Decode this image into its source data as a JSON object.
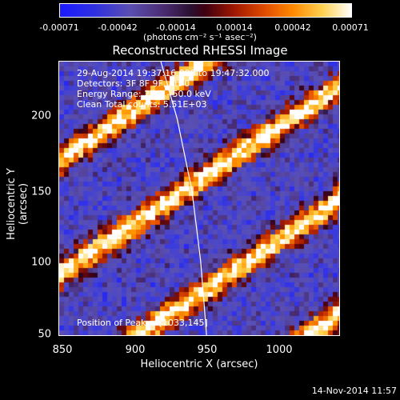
{
  "colorbar": {
    "ticks": [
      "-0.00071",
      "-0.00042",
      "-0.00014",
      "0.00014",
      "0.00042",
      "0.00071"
    ],
    "units": "(photons cm⁻² s⁻¹ asec⁻²)"
  },
  "chart_data": {
    "type": "heatmap",
    "title": "Reconstructed RHESSI Image",
    "xlabel": "Heliocentric X (arcsec)",
    "ylabel": "Heliocentric Y (arcsec)",
    "xlim": [
      850,
      1040
    ],
    "ylim": [
      48,
      240
    ],
    "x_ticks": [
      "850",
      "900",
      "950",
      "1000"
    ],
    "y_ticks": [
      "50",
      "100",
      "150",
      "200"
    ],
    "clim": [
      -0.00071,
      0.00071
    ],
    "colormap": "blue-purple-black-red-yellow-white",
    "stripe_angle_deg": 34,
    "annotations": [
      "29-Aug-2014 19:37:16.000 to 19:47:32.000",
      "Detectors: 3F 8F 9F, Att 0",
      "Energy Range: 25.0 - 50.0 keV",
      "Clean     Total counts: 5.51E+03"
    ],
    "peak_label": "Position of Peak = [1033,145]",
    "limb_curve_x_at_y": [
      [
        919,
        240
      ],
      [
        930,
        200
      ],
      [
        940,
        150
      ],
      [
        946,
        100
      ],
      [
        950,
        48
      ]
    ]
  },
  "footer": "14-Nov-2014 11:57"
}
